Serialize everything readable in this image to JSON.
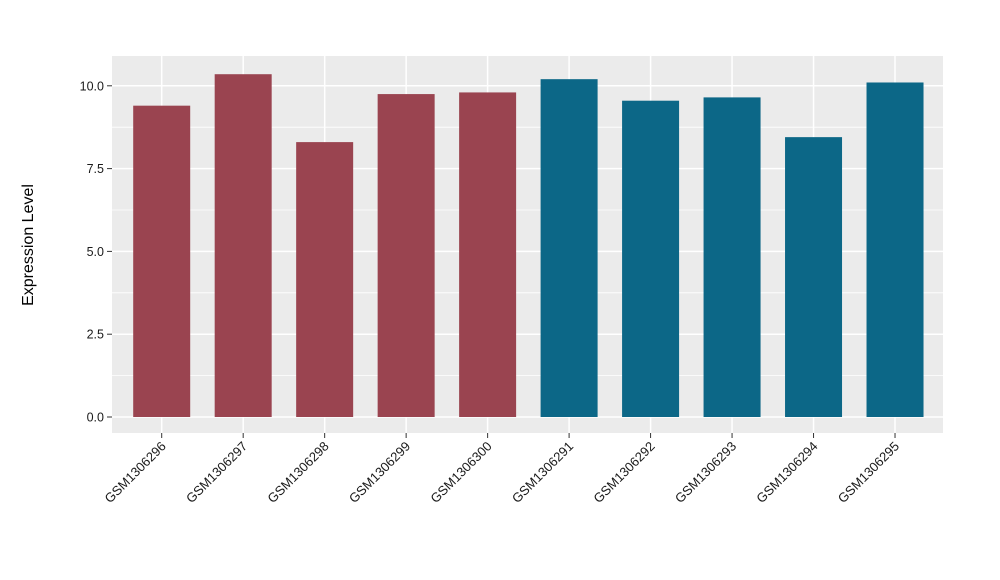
{
  "chart_data": {
    "type": "bar",
    "title": "",
    "xlabel": "",
    "ylabel": "Expression Level",
    "categories": [
      "GSM1306296",
      "GSM1306297",
      "GSM1306298",
      "GSM1306299",
      "GSM1306300",
      "GSM1306291",
      "GSM1306292",
      "GSM1306293",
      "GSM1306294",
      "GSM1306295"
    ],
    "values": [
      9.4,
      10.35,
      8.3,
      9.75,
      9.8,
      10.2,
      9.55,
      9.65,
      8.45,
      10.1
    ],
    "bar_colors": [
      "#9A4450",
      "#9A4450",
      "#9A4450",
      "#9A4450",
      "#9A4450",
      "#0C6787",
      "#0C6787",
      "#0C6787",
      "#0C6787",
      "#0C6787"
    ],
    "group_colors": {
      "left_group": "#9A4450",
      "right_group": "#0C6787"
    },
    "y_ticks": [
      0.0,
      2.5,
      5.0,
      7.5,
      10.0
    ],
    "y_tick_labels": [
      "0.0",
      "2.5",
      "5.0",
      "7.5",
      "10.0"
    ],
    "y_minor_ticks": [
      1.25,
      3.75,
      6.25,
      8.75
    ],
    "ylim": [
      -0.48,
      10.9
    ],
    "grid": true,
    "legend": "none",
    "x_tick_rotation_deg": 45,
    "panel_bg": "#EBEBEB",
    "grid_color": "#FFFFFF",
    "tick_color": "#333333",
    "text_color": "#1A1A1A"
  }
}
